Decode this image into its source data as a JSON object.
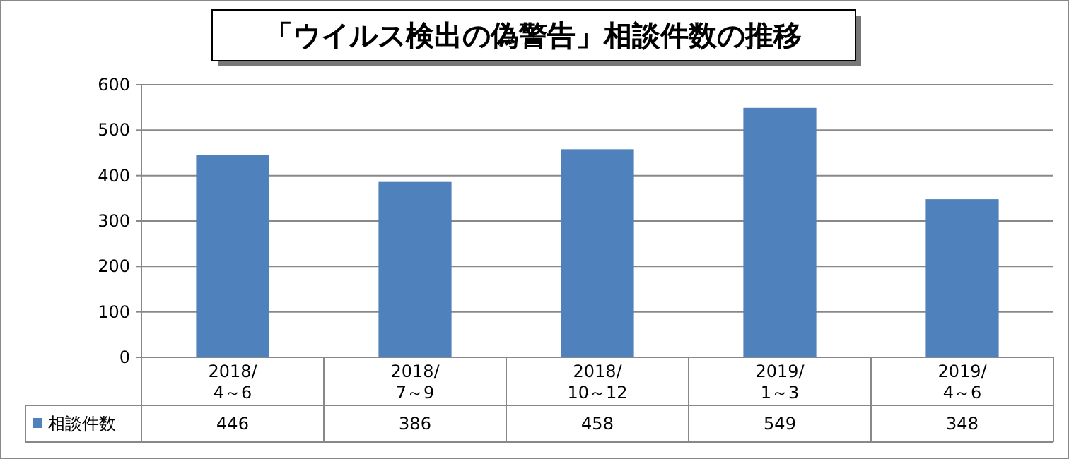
{
  "chart_data": {
    "type": "bar",
    "title": "「ウイルス検出の偽警告」相談件数の推移",
    "categories": [
      "2018/\n4～6",
      "2018/\n7～9",
      "2018/\n10～12",
      "2019/\n1～3",
      "2019/\n4～6"
    ],
    "series": [
      {
        "name": "相談件数",
        "color": "#4f81bd",
        "values": [
          446,
          386,
          458,
          549,
          348
        ]
      }
    ],
    "ylim": [
      0,
      600
    ],
    "yticks": [
      0,
      100,
      200,
      300,
      400,
      500,
      600
    ],
    "grid": "y",
    "data_labels": true,
    "legend": "bottom"
  }
}
